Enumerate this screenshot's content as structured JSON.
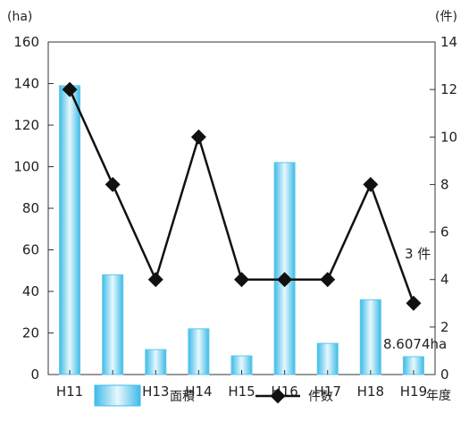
{
  "chart_data": {
    "type": "bar+line",
    "categories": [
      "H11",
      "H12",
      "H13",
      "H14",
      "H15",
      "H16",
      "H17",
      "H18",
      "H19"
    ],
    "x_unit": "年度",
    "left_axis": {
      "unit": "(ha)",
      "ylim": [
        0,
        160
      ],
      "ticks": [
        0,
        20,
        40,
        60,
        80,
        100,
        120,
        140,
        160
      ]
    },
    "right_axis": {
      "unit": "(件)",
      "ylim": [
        0,
        14
      ],
      "ticks": [
        0,
        2,
        4,
        6,
        8,
        10,
        12,
        14
      ]
    },
    "series": [
      {
        "name": "面積",
        "type": "bar",
        "axis": "left",
        "color": "#5bc8ee",
        "values": [
          139,
          48,
          12,
          22,
          9,
          102,
          15,
          36,
          8.6074
        ]
      },
      {
        "name": "件数",
        "type": "line",
        "axis": "right",
        "color": "#111111",
        "values": [
          12,
          8,
          4,
          10,
          4,
          4,
          4,
          8,
          3
        ]
      }
    ],
    "annotations": [
      {
        "text": "3 件",
        "target": "件数 H19"
      },
      {
        "text": "8.6074ha",
        "target": "面積 H19"
      }
    ],
    "legend_position": "bottom",
    "grid": false
  }
}
